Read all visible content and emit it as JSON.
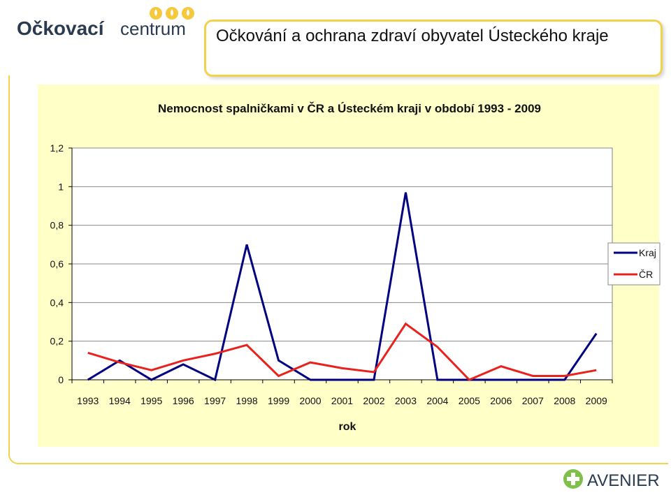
{
  "header": {
    "logo_text_1": "Očkovací",
    "logo_text_2": "centrum",
    "title": "Očkování a ochrana zdraví obyvatel Ústeckého kraje"
  },
  "footer": {
    "brand": "AVENIER"
  },
  "colors": {
    "kraj": "#000080",
    "cr": "#e8231e",
    "accent": "#f2d24a",
    "chart_bg": "#ffffc8"
  },
  "chart_data": {
    "type": "line",
    "title": "Nemocnost spalničkami v ČR a Ústeckém kraji v období 1993 - 2009",
    "xlabel": "rok",
    "ylabel": "",
    "ylim": [
      0,
      1.2
    ],
    "yticks": [
      "0",
      "0,2",
      "0,4",
      "0,6",
      "0,8",
      "1",
      "1,2"
    ],
    "categories": [
      "1993",
      "1994",
      "1995",
      "1996",
      "1997",
      "1998",
      "1999",
      "2000",
      "2001",
      "2002",
      "2003",
      "2004",
      "2005",
      "2006",
      "2007",
      "2008",
      "2009"
    ],
    "grid": true,
    "legend_position": "right",
    "series": [
      {
        "name": "Kraj",
        "color": "#000080",
        "values": [
          0,
          0.1,
          0,
          0.08,
          0,
          0.7,
          0.1,
          0,
          0,
          0,
          0.97,
          0,
          0,
          0,
          0,
          0,
          0.24
        ]
      },
      {
        "name": "ČR",
        "color": "#e8231e",
        "values": [
          0.14,
          0.09,
          0.05,
          0.1,
          0.135,
          0.18,
          0.02,
          0.09,
          0.06,
          0.04,
          0.29,
          0.17,
          0,
          0.07,
          0.02,
          0.02,
          0.05
        ]
      }
    ]
  }
}
